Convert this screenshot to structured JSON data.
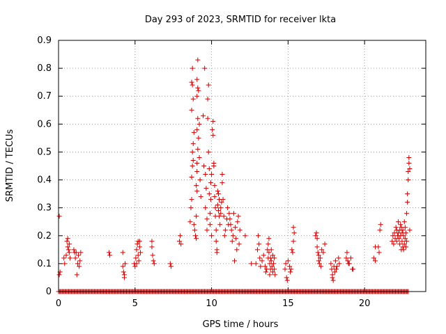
{
  "chart_data": {
    "type": "scatter",
    "title": "Day 293 of 2023, SRMTID for receiver lkta",
    "xlabel": "GPS time / hours",
    "ylabel": "SRMTID / TECUs",
    "xlim": [
      0,
      24
    ],
    "ylim": [
      0,
      0.9
    ],
    "xticks": [
      0,
      5,
      10,
      15,
      20
    ],
    "yticks": [
      0,
      0.1,
      0.2,
      0.3,
      0.4,
      0.5,
      0.6,
      0.7,
      0.8,
      0.9
    ],
    "xtick_labels": [
      "0",
      "5",
      "10",
      "15",
      "20"
    ],
    "ytick_labels": [
      "0",
      "0.1",
      "0.2",
      "0.3",
      "0.4",
      "0.5",
      "0.6",
      "0.7",
      "0.8",
      "0.9"
    ],
    "grid": true,
    "marker": "+",
    "color": "#cc0000",
    "series": [
      {
        "name": "SRMTID",
        "points": [
          [
            0.05,
            0.27
          ],
          [
            0.05,
            0.06
          ],
          [
            0.1,
            0.07
          ],
          [
            0.35,
            0.12
          ],
          [
            0.4,
            0.1
          ],
          [
            0.5,
            0.13
          ],
          [
            0.55,
            0.18
          ],
          [
            0.6,
            0.19
          ],
          [
            0.6,
            0.16
          ],
          [
            0.65,
            0.15
          ],
          [
            0.7,
            0.17
          ],
          [
            0.75,
            0.12
          ],
          [
            0.7,
            0.14
          ],
          [
            1.0,
            0.15
          ],
          [
            1.05,
            0.14
          ],
          [
            1.1,
            0.12
          ],
          [
            1.15,
            0.14
          ],
          [
            1.2,
            0.06
          ],
          [
            1.25,
            0.1
          ],
          [
            1.3,
            0.13
          ],
          [
            1.35,
            0.09
          ],
          [
            1.4,
            0.11
          ],
          [
            1.45,
            0.14
          ],
          [
            3.3,
            0.14
          ],
          [
            3.35,
            0.13
          ],
          [
            4.2,
            0.14
          ],
          [
            4.2,
            0.09
          ],
          [
            4.25,
            0.07
          ],
          [
            4.3,
            0.06
          ],
          [
            4.35,
            0.1
          ],
          [
            4.3,
            0.05
          ],
          [
            4.95,
            0.1
          ],
          [
            5.0,
            0.09
          ],
          [
            5.05,
            0.12
          ],
          [
            5.1,
            0.15
          ],
          [
            5.15,
            0.17
          ],
          [
            5.2,
            0.18
          ],
          [
            5.1,
            0.1
          ],
          [
            5.2,
            0.13
          ],
          [
            5.25,
            0.11
          ],
          [
            5.3,
            0.16
          ],
          [
            5.35,
            0.14
          ],
          [
            5.3,
            0.18
          ],
          [
            6.1,
            0.18
          ],
          [
            6.1,
            0.16
          ],
          [
            6.15,
            0.13
          ],
          [
            6.2,
            0.11
          ],
          [
            6.25,
            0.1
          ],
          [
            7.3,
            0.1
          ],
          [
            7.35,
            0.09
          ],
          [
            7.9,
            0.18
          ],
          [
            7.95,
            0.2
          ],
          [
            8.0,
            0.17
          ],
          [
            8.6,
            0.25
          ],
          [
            8.65,
            0.3
          ],
          [
            8.7,
            0.33
          ],
          [
            8.7,
            0.41
          ],
          [
            8.75,
            0.45
          ],
          [
            8.8,
            0.47
          ],
          [
            8.75,
            0.5
          ],
          [
            8.8,
            0.53
          ],
          [
            8.85,
            0.57
          ],
          [
            8.7,
            0.65
          ],
          [
            8.75,
            0.74
          ],
          [
            8.8,
            0.69
          ],
          [
            8.7,
            0.75
          ],
          [
            8.75,
            0.8
          ],
          [
            8.85,
            0.24
          ],
          [
            8.9,
            0.22
          ],
          [
            8.95,
            0.2
          ],
          [
            9.0,
            0.19
          ],
          [
            9.0,
            0.27
          ],
          [
            9.05,
            0.36
          ],
          [
            9.0,
            0.38
          ],
          [
            9.05,
            0.43
          ],
          [
            9.05,
            0.46
          ],
          [
            9.1,
            0.51
          ],
          [
            9.05,
            0.58
          ],
          [
            9.1,
            0.62
          ],
          [
            9.05,
            0.7
          ],
          [
            9.1,
            0.73
          ],
          [
            9.05,
            0.76
          ],
          [
            9.1,
            0.83
          ],
          [
            9.15,
            0.72
          ],
          [
            9.2,
            0.6
          ],
          [
            9.15,
            0.55
          ],
          [
            9.2,
            0.48
          ],
          [
            9.25,
            0.4
          ],
          [
            9.3,
            0.34
          ],
          [
            9.45,
            0.63
          ],
          [
            9.5,
            0.45
          ],
          [
            9.55,
            0.8
          ],
          [
            9.6,
            0.42
          ],
          [
            9.65,
            0.37
          ],
          [
            9.6,
            0.3
          ],
          [
            9.7,
            0.26
          ],
          [
            9.7,
            0.22
          ],
          [
            9.75,
            0.62
          ],
          [
            9.75,
            0.69
          ],
          [
            9.8,
            0.74
          ],
          [
            9.8,
            0.5
          ],
          [
            9.85,
            0.44
          ],
          [
            9.85,
            0.35
          ],
          [
            9.9,
            0.28
          ],
          [
            9.9,
            0.24
          ],
          [
            9.95,
            0.33
          ],
          [
            9.95,
            0.39
          ],
          [
            10.0,
            0.42
          ],
          [
            10.0,
            0.2
          ],
          [
            10.05,
            0.58
          ],
          [
            10.1,
            0.61
          ],
          [
            10.1,
            0.56
          ],
          [
            10.15,
            0.46
          ],
          [
            10.15,
            0.45
          ],
          [
            10.2,
            0.38
          ],
          [
            10.2,
            0.34
          ],
          [
            10.25,
            0.3
          ],
          [
            10.25,
            0.27
          ],
          [
            10.3,
            0.22
          ],
          [
            10.3,
            0.18
          ],
          [
            10.35,
            0.15
          ],
          [
            10.35,
            0.14
          ],
          [
            10.4,
            0.36
          ],
          [
            10.4,
            0.31
          ],
          [
            10.45,
            0.35
          ],
          [
            10.45,
            0.29
          ],
          [
            10.5,
            0.33
          ],
          [
            10.5,
            0.27
          ],
          [
            10.55,
            0.24
          ],
          [
            10.6,
            0.28
          ],
          [
            10.6,
            0.3
          ],
          [
            10.65,
            0.32
          ],
          [
            10.7,
            0.39
          ],
          [
            10.7,
            0.42
          ],
          [
            10.75,
            0.33
          ],
          [
            10.8,
            0.27
          ],
          [
            10.85,
            0.2
          ],
          [
            10.9,
            0.22
          ],
          [
            11.0,
            0.26
          ],
          [
            11.05,
            0.3
          ],
          [
            11.1,
            0.24
          ],
          [
            11.15,
            0.28
          ],
          [
            11.2,
            0.26
          ],
          [
            11.25,
            0.24
          ],
          [
            11.3,
            0.22
          ],
          [
            11.35,
            0.18
          ],
          [
            11.4,
            0.2
          ],
          [
            11.45,
            0.28
          ],
          [
            11.5,
            0.11
          ],
          [
            11.55,
            0.23
          ],
          [
            11.6,
            0.19
          ],
          [
            11.65,
            0.15
          ],
          [
            11.7,
            0.25
          ],
          [
            11.75,
            0.27
          ],
          [
            11.8,
            0.17
          ],
          [
            11.85,
            0.22
          ],
          [
            12.2,
            0.2
          ],
          [
            12.6,
            0.1
          ],
          [
            12.9,
            0.1
          ],
          [
            13.0,
            0.15
          ],
          [
            13.05,
            0.2
          ],
          [
            13.1,
            0.17
          ],
          [
            13.15,
            0.12
          ],
          [
            13.2,
            0.09
          ],
          [
            13.3,
            0.11
          ],
          [
            13.4,
            0.13
          ],
          [
            13.5,
            0.09
          ],
          [
            13.55,
            0.07
          ],
          [
            13.6,
            0.08
          ],
          [
            13.65,
            0.15
          ],
          [
            13.7,
            0.17
          ],
          [
            13.7,
            0.12
          ],
          [
            13.75,
            0.19
          ],
          [
            13.75,
            0.14
          ],
          [
            13.8,
            0.1
          ],
          [
            13.8,
            0.06
          ],
          [
            13.85,
            0.08
          ],
          [
            13.85,
            0.12
          ],
          [
            13.9,
            0.15
          ],
          [
            13.9,
            0.11
          ],
          [
            13.95,
            0.09
          ],
          [
            14.0,
            0.13
          ],
          [
            14.0,
            0.07
          ],
          [
            14.05,
            0.1
          ],
          [
            14.1,
            0.08
          ],
          [
            14.1,
            0.12
          ],
          [
            14.15,
            0.06
          ],
          [
            14.8,
            0.08
          ],
          [
            14.85,
            0.1
          ],
          [
            14.9,
            0.05
          ],
          [
            14.95,
            0.04
          ],
          [
            15.0,
            0.11
          ],
          [
            15.1,
            0.09
          ],
          [
            15.15,
            0.07
          ],
          [
            15.2,
            0.08
          ],
          [
            15.25,
            0.15
          ],
          [
            15.3,
            0.14
          ],
          [
            15.35,
            0.18
          ],
          [
            15.4,
            0.21
          ],
          [
            15.35,
            0.23
          ],
          [
            16.8,
            0.2
          ],
          [
            16.85,
            0.21
          ],
          [
            16.9,
            0.19
          ],
          [
            16.9,
            0.16
          ],
          [
            16.95,
            0.14
          ],
          [
            17.0,
            0.13
          ],
          [
            17.0,
            0.11
          ],
          [
            17.05,
            0.1
          ],
          [
            17.1,
            0.12
          ],
          [
            17.15,
            0.09
          ],
          [
            17.2,
            0.15
          ],
          [
            17.3,
            0.14
          ],
          [
            17.4,
            0.17
          ],
          [
            17.8,
            0.1
          ],
          [
            17.85,
            0.08
          ],
          [
            17.9,
            0.06
          ],
          [
            17.9,
            0.05
          ],
          [
            17.95,
            0.04
          ],
          [
            18.0,
            0.09
          ],
          [
            18.05,
            0.07
          ],
          [
            18.1,
            0.11
          ],
          [
            18.15,
            0.08
          ],
          [
            18.2,
            0.09
          ],
          [
            18.3,
            0.12
          ],
          [
            18.35,
            0.1
          ],
          [
            18.8,
            0.12
          ],
          [
            18.85,
            0.14
          ],
          [
            18.9,
            0.11
          ],
          [
            18.95,
            0.1
          ],
          [
            19.0,
            0.1
          ],
          [
            19.1,
            0.12
          ],
          [
            19.2,
            0.08
          ],
          [
            19.25,
            0.08
          ],
          [
            20.6,
            0.12
          ],
          [
            20.7,
            0.11
          ],
          [
            20.7,
            0.16
          ],
          [
            20.9,
            0.16
          ],
          [
            20.95,
            0.14
          ],
          [
            21.0,
            0.22
          ],
          [
            21.05,
            0.24
          ],
          [
            21.8,
            0.18
          ],
          [
            21.85,
            0.2
          ],
          [
            21.9,
            0.17
          ],
          [
            21.95,
            0.21
          ],
          [
            22.0,
            0.19
          ],
          [
            22.05,
            0.23
          ],
          [
            22.1,
            0.18
          ],
          [
            22.1,
            0.22
          ],
          [
            22.15,
            0.2
          ],
          [
            22.2,
            0.21
          ],
          [
            22.2,
            0.25
          ],
          [
            22.25,
            0.19
          ],
          [
            22.3,
            0.22
          ],
          [
            22.3,
            0.17
          ],
          [
            22.35,
            0.24
          ],
          [
            22.35,
            0.2
          ],
          [
            22.4,
            0.15
          ],
          [
            22.4,
            0.23
          ],
          [
            22.45,
            0.18
          ],
          [
            22.45,
            0.21
          ],
          [
            22.5,
            0.16
          ],
          [
            22.5,
            0.22
          ],
          [
            22.55,
            0.15
          ],
          [
            22.55,
            0.2
          ],
          [
            22.6,
            0.25
          ],
          [
            22.6,
            0.17
          ],
          [
            22.65,
            0.19
          ],
          [
            22.65,
            0.23
          ],
          [
            22.7,
            0.16
          ],
          [
            22.7,
            0.21
          ],
          [
            22.75,
            0.18
          ],
          [
            22.75,
            0.28
          ],
          [
            22.8,
            0.35
          ],
          [
            22.8,
            0.32
          ],
          [
            22.85,
            0.4
          ],
          [
            22.85,
            0.43
          ],
          [
            22.9,
            0.46
          ],
          [
            22.9,
            0.48
          ],
          [
            22.95,
            0.44
          ],
          [
            22.95,
            0.22
          ]
        ]
      }
    ]
  }
}
